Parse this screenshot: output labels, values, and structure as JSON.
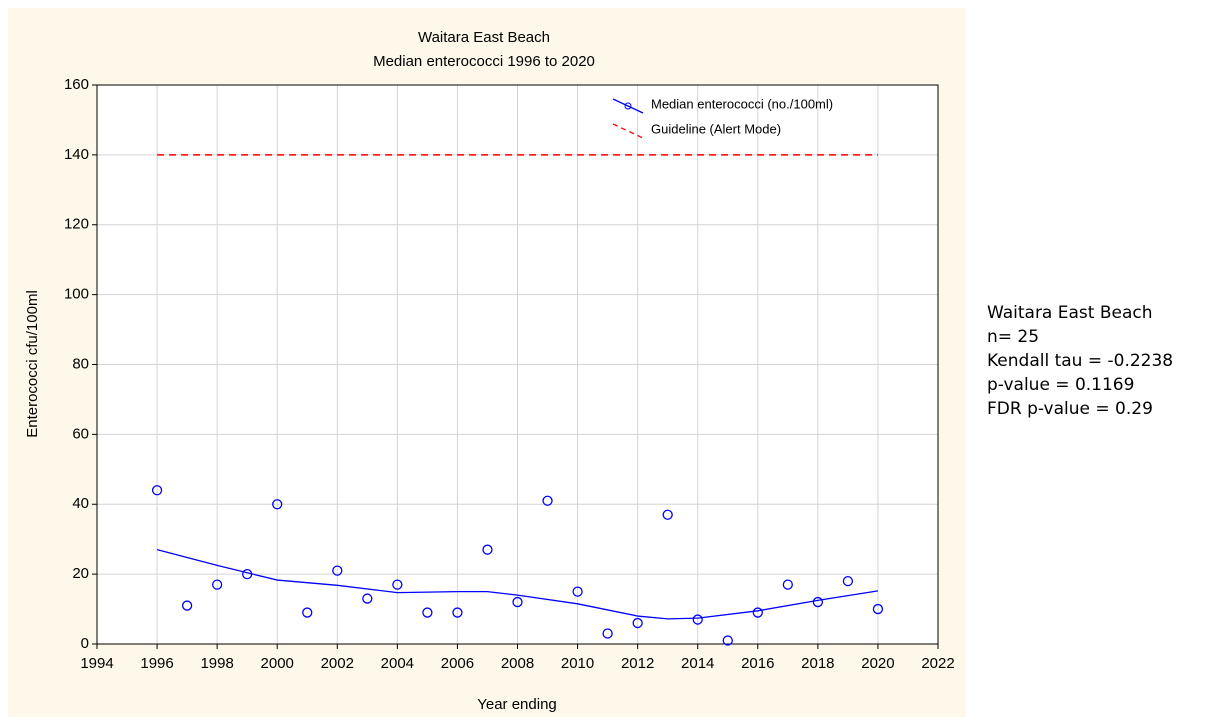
{
  "chart_data": {
    "type": "scatter",
    "title": "Waitara East Beach",
    "subtitle": "Median enterococci 1996 to 2020",
    "x_label": "Year ending",
    "y_label": "Enterococci cfu/100ml",
    "xlim": [
      1994,
      2022
    ],
    "xticks": [
      1994,
      1996,
      1998,
      2000,
      2002,
      2004,
      2006,
      2008,
      2010,
      2012,
      2014,
      2016,
      2018,
      2020,
      2022
    ],
    "ylim": [
      0,
      160
    ],
    "yticks": [
      0,
      20,
      40,
      60,
      80,
      100,
      120,
      140,
      160
    ],
    "grid": true,
    "legend": "upper right",
    "series": [
      {
        "name": "Median enterococci (no./100ml)",
        "color": "#0000ff",
        "x": [
          1996,
          1997,
          1998,
          1999,
          2000,
          2001,
          2002,
          2003,
          2004,
          2005,
          2006,
          2007,
          2008,
          2009,
          2010,
          2011,
          2012,
          2013,
          2014,
          2015,
          2016,
          2017,
          2018,
          2019,
          2020
        ],
        "values": [
          44,
          11,
          17,
          20,
          40,
          9,
          21,
          13,
          17,
          9,
          9,
          27,
          12,
          41,
          15,
          3,
          6,
          37,
          7,
          1,
          9,
          17,
          12,
          18,
          10
        ],
        "fit_x": [
          1996,
          1998,
          2000,
          2002,
          2004,
          2006,
          2007,
          2008,
          2010,
          2012,
          2013,
          2014,
          2016,
          2018,
          2020
        ],
        "fit_values": [
          27,
          22.5,
          18.3,
          16.8,
          14.7,
          15,
          15,
          14,
          11.5,
          8,
          7.2,
          7.4,
          9.5,
          12.5,
          15.2
        ]
      },
      {
        "name": "Guideline (Alert Mode)",
        "color": "#ff0000",
        "dashed": true,
        "x": [
          1996,
          2020
        ],
        "values": [
          140,
          140
        ]
      }
    ],
    "annotations": [
      "Waitara East Beach",
      "n= 25",
      "Kendall tau = -0.2238",
      "p-value = 0.1169",
      "FDR p-value = 0.29"
    ]
  }
}
